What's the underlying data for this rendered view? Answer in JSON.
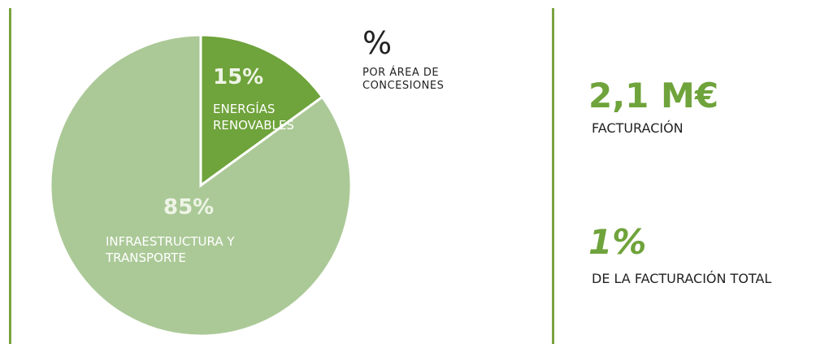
{
  "chart_data": {
    "type": "pie",
    "title": "%",
    "subtitle": "POR ÁREA DE CONCESIONES",
    "categories": [
      "ENERGÍAS RENOVABLES",
      "INFRAESTRUCTURA Y TRANSPORTE"
    ],
    "values": [
      15,
      85
    ],
    "value_labels": [
      "15%",
      "85%"
    ],
    "colors": [
      "#6fa33b",
      "#abc997"
    ]
  },
  "kpis": [
    {
      "value": "2,1 M€",
      "label": "FACTURACIÓN"
    },
    {
      "value": "1%",
      "label": "DE LA FACTURACIÓN TOTAL"
    }
  ]
}
